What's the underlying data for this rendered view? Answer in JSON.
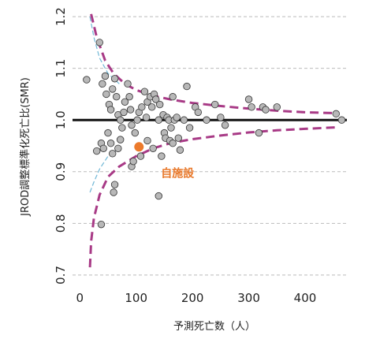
{
  "chart_data": {
    "type": "scatter",
    "title": "",
    "xlabel": "予測死亡数（人）",
    "ylabel": "JROD調整標準化死亡比(SMR)",
    "xlim": [
      -20,
      470
    ],
    "ylim": [
      0.68,
      1.22
    ],
    "xticks": [
      0,
      100,
      200,
      300,
      400
    ],
    "xtick_labels": [
      "0",
      "100",
      "200",
      "300",
      "400"
    ],
    "yticks": [
      0.7,
      0.8,
      0.9,
      1.0,
      1.1,
      1.2
    ],
    "ytick_labels": [
      "0.7",
      "0.8",
      "0.9",
      "1.0",
      "1.1",
      "1.2"
    ],
    "grid": "horizontal dashed",
    "reference_line": 1.0,
    "colors": {
      "points": "#b8b8b8",
      "point_edge": "#333333",
      "highlight": "#ec7a2c",
      "outer_limit": "#a83a86",
      "inner_limit": "#6fb7d6",
      "reference": "#111111",
      "grid": "#bbbbbb"
    },
    "annotation": {
      "label": "自施設",
      "x": 105,
      "y": 0.948
    },
    "points": [
      [
        12,
        1.078
      ],
      [
        35,
        1.15
      ],
      [
        40,
        1.07
      ],
      [
        45,
        1.085
      ],
      [
        47,
        1.05
      ],
      [
        52,
        1.03
      ],
      [
        55,
        1.02
      ],
      [
        58,
        1.06
      ],
      [
        62,
        1.08
      ],
      [
        65,
        1.045
      ],
      [
        68,
        1.01
      ],
      [
        72,
        1.0
      ],
      [
        78,
        1.015
      ],
      [
        80,
        1.035
      ],
      [
        85,
        1.07
      ],
      [
        88,
        1.045
      ],
      [
        90,
        1.02
      ],
      [
        92,
        0.99
      ],
      [
        98,
        0.975
      ],
      [
        102,
        1.0
      ],
      [
        105,
        1.015
      ],
      [
        110,
        1.025
      ],
      [
        115,
        1.055
      ],
      [
        118,
        1.005
      ],
      [
        120,
        1.035
      ],
      [
        125,
        1.045
      ],
      [
        128,
        1.025
      ],
      [
        132,
        1.05
      ],
      [
        135,
        1.04
      ],
      [
        140,
        1.0
      ],
      [
        142,
        1.03
      ],
      [
        148,
        1.01
      ],
      [
        150,
        0.975
      ],
      [
        155,
        1.005
      ],
      [
        158,
        1.0
      ],
      [
        162,
        0.985
      ],
      [
        165,
        1.045
      ],
      [
        168,
        1.0
      ],
      [
        172,
        1.005
      ],
      [
        175,
        0.965
      ],
      [
        185,
        1.0
      ],
      [
        190,
        1.065
      ],
      [
        195,
        0.985
      ],
      [
        205,
        1.025
      ],
      [
        210,
        1.015
      ],
      [
        225,
        1.0
      ],
      [
        240,
        1.03
      ],
      [
        250,
        1.005
      ],
      [
        258,
        0.99
      ],
      [
        300,
        1.04
      ],
      [
        305,
        1.025
      ],
      [
        318,
        0.975
      ],
      [
        325,
        1.025
      ],
      [
        330,
        1.02
      ],
      [
        350,
        1.025
      ],
      [
        455,
        1.012
      ],
      [
        465,
        1.0
      ],
      [
        30,
        0.94
      ],
      [
        38,
        0.955
      ],
      [
        42,
        0.945
      ],
      [
        50,
        0.975
      ],
      [
        55,
        0.955
      ],
      [
        58,
        0.935
      ],
      [
        60,
        0.86
      ],
      [
        62,
        0.875
      ],
      [
        68,
        0.945
      ],
      [
        72,
        0.962
      ],
      [
        75,
        0.985
      ],
      [
        92,
        0.91
      ],
      [
        95,
        0.92
      ],
      [
        108,
        0.93
      ],
      [
        120,
        0.96
      ],
      [
        130,
        0.945
      ],
      [
        145,
        0.93
      ],
      [
        152,
        0.965
      ],
      [
        160,
        0.96
      ],
      [
        165,
        0.955
      ],
      [
        140,
        0.853
      ],
      [
        38,
        0.798
      ],
      [
        178,
        0.942
      ]
    ],
    "highlight_point": [
      105,
      0.948
    ],
    "outer_upper": [
      [
        20,
        1.205
      ],
      [
        30,
        1.16
      ],
      [
        45,
        1.115
      ],
      [
        60,
        1.09
      ],
      [
        80,
        1.07
      ],
      [
        100,
        1.058
      ],
      [
        130,
        1.047
      ],
      [
        160,
        1.04
      ],
      [
        200,
        1.033
      ],
      [
        250,
        1.027
      ],
      [
        300,
        1.022
      ],
      [
        350,
        1.018
      ],
      [
        400,
        1.015
      ],
      [
        460,
        1.013
      ]
    ],
    "outer_lower": [
      [
        18,
        0.715
      ],
      [
        20,
        0.765
      ],
      [
        25,
        0.81
      ],
      [
        35,
        0.855
      ],
      [
        50,
        0.89
      ],
      [
        70,
        0.91
      ],
      [
        100,
        0.93
      ],
      [
        130,
        0.945
      ],
      [
        160,
        0.955
      ],
      [
        200,
        0.963
      ],
      [
        250,
        0.97
      ],
      [
        300,
        0.976
      ],
      [
        350,
        0.98
      ],
      [
        400,
        0.983
      ],
      [
        460,
        0.986
      ]
    ],
    "inner_upper": [
      [
        18,
        1.2
      ],
      [
        25,
        1.16
      ],
      [
        35,
        1.12
      ],
      [
        50,
        1.09
      ],
      [
        70,
        1.07
      ]
    ],
    "inner_lower": [
      [
        18,
        0.86
      ],
      [
        25,
        0.88
      ],
      [
        35,
        0.905
      ],
      [
        50,
        0.93
      ],
      [
        70,
        0.945
      ]
    ]
  }
}
